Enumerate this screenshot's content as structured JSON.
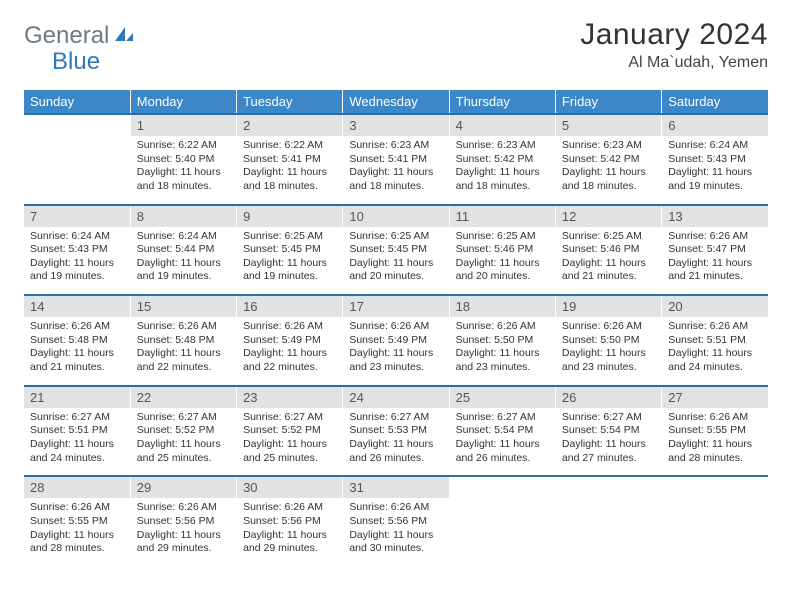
{
  "brand": {
    "part1": "General",
    "part2": "Blue"
  },
  "title": "January 2024",
  "location": "Al Ma`udah, Yemen",
  "colors": {
    "header_bg": "#3b87c8",
    "header_border": "#2c6fa8",
    "num_bg": "#e0e2e4",
    "brand_gray": "#6b7a86",
    "brand_blue": "#2f79b9"
  },
  "weekdays": [
    "Sunday",
    "Monday",
    "Tuesday",
    "Wednesday",
    "Thursday",
    "Friday",
    "Saturday"
  ],
  "weeks": [
    {
      "nums": [
        "",
        "1",
        "2",
        "3",
        "4",
        "5",
        "6"
      ],
      "details": [
        "",
        "Sunrise: 6:22 AM\nSunset: 5:40 PM\nDaylight: 11 hours and 18 minutes.",
        "Sunrise: 6:22 AM\nSunset: 5:41 PM\nDaylight: 11 hours and 18 minutes.",
        "Sunrise: 6:23 AM\nSunset: 5:41 PM\nDaylight: 11 hours and 18 minutes.",
        "Sunrise: 6:23 AM\nSunset: 5:42 PM\nDaylight: 11 hours and 18 minutes.",
        "Sunrise: 6:23 AM\nSunset: 5:42 PM\nDaylight: 11 hours and 18 minutes.",
        "Sunrise: 6:24 AM\nSunset: 5:43 PM\nDaylight: 11 hours and 19 minutes."
      ]
    },
    {
      "nums": [
        "7",
        "8",
        "9",
        "10",
        "11",
        "12",
        "13"
      ],
      "details": [
        "Sunrise: 6:24 AM\nSunset: 5:43 PM\nDaylight: 11 hours and 19 minutes.",
        "Sunrise: 6:24 AM\nSunset: 5:44 PM\nDaylight: 11 hours and 19 minutes.",
        "Sunrise: 6:25 AM\nSunset: 5:45 PM\nDaylight: 11 hours and 19 minutes.",
        "Sunrise: 6:25 AM\nSunset: 5:45 PM\nDaylight: 11 hours and 20 minutes.",
        "Sunrise: 6:25 AM\nSunset: 5:46 PM\nDaylight: 11 hours and 20 minutes.",
        "Sunrise: 6:25 AM\nSunset: 5:46 PM\nDaylight: 11 hours and 21 minutes.",
        "Sunrise: 6:26 AM\nSunset: 5:47 PM\nDaylight: 11 hours and 21 minutes."
      ]
    },
    {
      "nums": [
        "14",
        "15",
        "16",
        "17",
        "18",
        "19",
        "20"
      ],
      "details": [
        "Sunrise: 6:26 AM\nSunset: 5:48 PM\nDaylight: 11 hours and 21 minutes.",
        "Sunrise: 6:26 AM\nSunset: 5:48 PM\nDaylight: 11 hours and 22 minutes.",
        "Sunrise: 6:26 AM\nSunset: 5:49 PM\nDaylight: 11 hours and 22 minutes.",
        "Sunrise: 6:26 AM\nSunset: 5:49 PM\nDaylight: 11 hours and 23 minutes.",
        "Sunrise: 6:26 AM\nSunset: 5:50 PM\nDaylight: 11 hours and 23 minutes.",
        "Sunrise: 6:26 AM\nSunset: 5:50 PM\nDaylight: 11 hours and 23 minutes.",
        "Sunrise: 6:26 AM\nSunset: 5:51 PM\nDaylight: 11 hours and 24 minutes."
      ]
    },
    {
      "nums": [
        "21",
        "22",
        "23",
        "24",
        "25",
        "26",
        "27"
      ],
      "details": [
        "Sunrise: 6:27 AM\nSunset: 5:51 PM\nDaylight: 11 hours and 24 minutes.",
        "Sunrise: 6:27 AM\nSunset: 5:52 PM\nDaylight: 11 hours and 25 minutes.",
        "Sunrise: 6:27 AM\nSunset: 5:52 PM\nDaylight: 11 hours and 25 minutes.",
        "Sunrise: 6:27 AM\nSunset: 5:53 PM\nDaylight: 11 hours and 26 minutes.",
        "Sunrise: 6:27 AM\nSunset: 5:54 PM\nDaylight: 11 hours and 26 minutes.",
        "Sunrise: 6:27 AM\nSunset: 5:54 PM\nDaylight: 11 hours and 27 minutes.",
        "Sunrise: 6:26 AM\nSunset: 5:55 PM\nDaylight: 11 hours and 28 minutes."
      ]
    },
    {
      "nums": [
        "28",
        "29",
        "30",
        "31",
        "",
        "",
        ""
      ],
      "details": [
        "Sunrise: 6:26 AM\nSunset: 5:55 PM\nDaylight: 11 hours and 28 minutes.",
        "Sunrise: 6:26 AM\nSunset: 5:56 PM\nDaylight: 11 hours and 29 minutes.",
        "Sunrise: 6:26 AM\nSunset: 5:56 PM\nDaylight: 11 hours and 29 minutes.",
        "Sunrise: 6:26 AM\nSunset: 5:56 PM\nDaylight: 11 hours and 30 minutes.",
        "",
        "",
        ""
      ]
    }
  ]
}
